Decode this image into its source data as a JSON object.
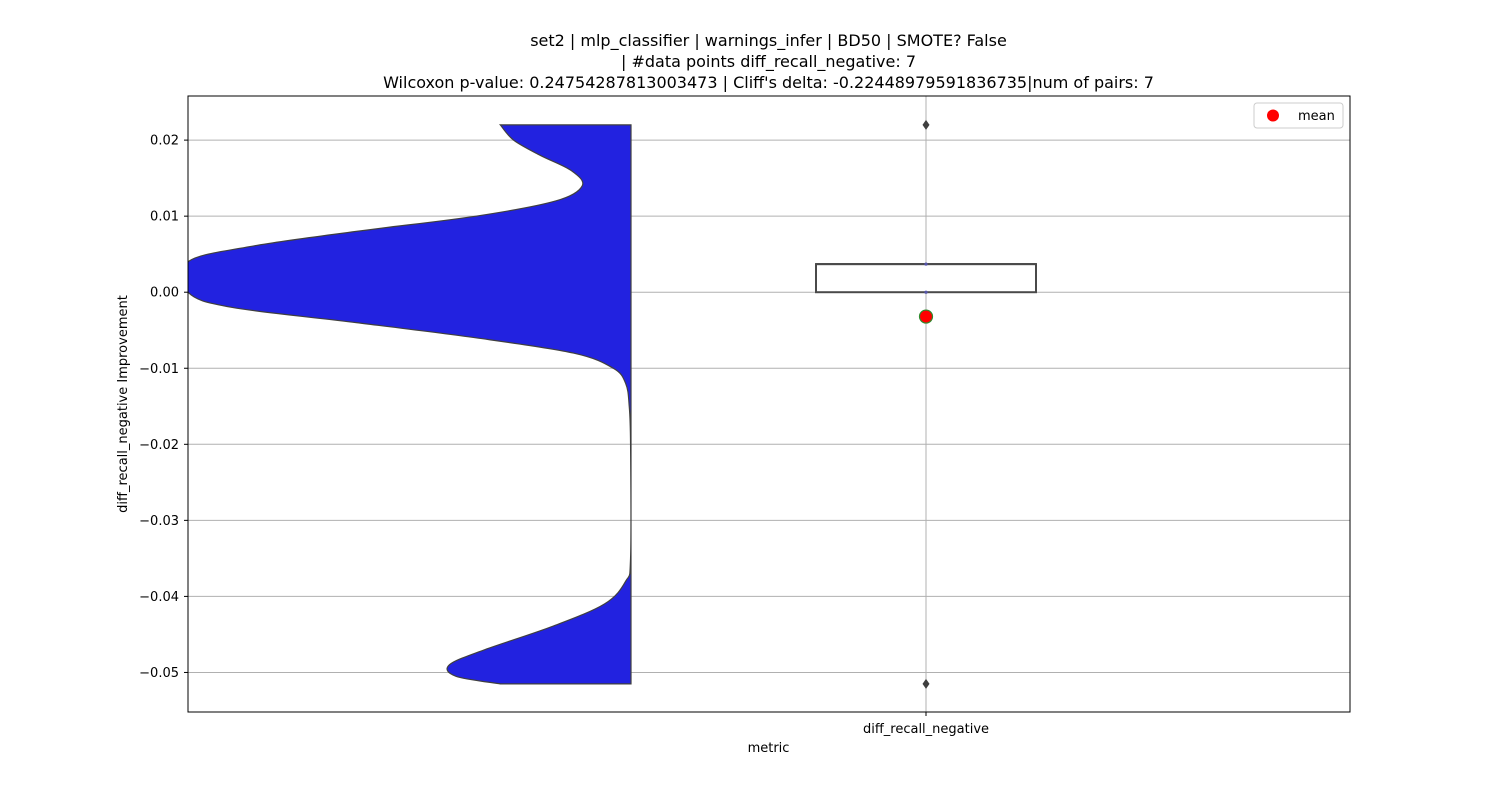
{
  "chart_data": {
    "type": "violin",
    "title_lines": [
      "set2 | mlp_classifier | warnings_infer | BD50 | SMOTE? False",
      "| #data points diff_recall_negative: 7",
      "Wilcoxon p-value: 0.24754287813003473 | Cliff's delta: -0.22448979591836735|num of pairs: 7"
    ],
    "xlabel": "metric",
    "ylabel": "diff_recall_negative Improvement",
    "categories": [
      "diff_recall_negative"
    ],
    "ylim": [
      -0.0552,
      0.0258
    ],
    "yticks": [
      0.02,
      0.01,
      0.0,
      -0.01,
      -0.02,
      -0.03,
      -0.04,
      -0.05
    ],
    "ytick_labels": [
      "0.02",
      "0.01",
      "0.00",
      "−0.01",
      "−0.02",
      "−0.03",
      "−0.04",
      "−0.05"
    ],
    "grid": true,
    "violin": {
      "color": "#2222e0",
      "side": "left",
      "y_range": [
        -0.0515,
        0.022
      ],
      "density_profile": [
        {
          "y": 0.022,
          "width": 0.295
        },
        {
          "y": 0.02,
          "width": 0.265
        },
        {
          "y": 0.018,
          "width": 0.205
        },
        {
          "y": 0.016,
          "width": 0.135
        },
        {
          "y": 0.014,
          "width": 0.11
        },
        {
          "y": 0.012,
          "width": 0.17
        },
        {
          "y": 0.01,
          "width": 0.35
        },
        {
          "y": 0.008,
          "width": 0.62
        },
        {
          "y": 0.006,
          "width": 0.86
        },
        {
          "y": 0.004,
          "width": 1.0
        },
        {
          "y": 0.0,
          "width": 1.0
        },
        {
          "y": -0.002,
          "width": 0.9
        },
        {
          "y": -0.004,
          "width": 0.62
        },
        {
          "y": -0.006,
          "width": 0.35
        },
        {
          "y": -0.008,
          "width": 0.13
        },
        {
          "y": -0.01,
          "width": 0.04
        },
        {
          "y": -0.012,
          "width": 0.012
        },
        {
          "y": -0.015,
          "width": 0.004
        },
        {
          "y": -0.02,
          "width": 0.001
        },
        {
          "y": -0.035,
          "width": 0.001
        },
        {
          "y": -0.038,
          "width": 0.012
        },
        {
          "y": -0.041,
          "width": 0.06
        },
        {
          "y": -0.044,
          "width": 0.18
        },
        {
          "y": -0.047,
          "width": 0.33
        },
        {
          "y": -0.049,
          "width": 0.41
        },
        {
          "y": -0.0505,
          "width": 0.395
        },
        {
          "y": -0.0515,
          "width": 0.295
        }
      ]
    },
    "boxplot": {
      "q1": 0.0,
      "median": 0.0037,
      "q3": 0.0037,
      "whisker_low": 0.0,
      "whisker_high": 0.0037,
      "outliers": [
        0.022,
        -0.0515
      ],
      "mean": -0.0032,
      "mean_color": "#ff0000",
      "mean_edge_color": "#2e8b2e"
    },
    "legend": {
      "entries": [
        {
          "name": "mean",
          "color": "#ff0000",
          "marker": "circle"
        }
      ],
      "placement": "top-right"
    }
  }
}
